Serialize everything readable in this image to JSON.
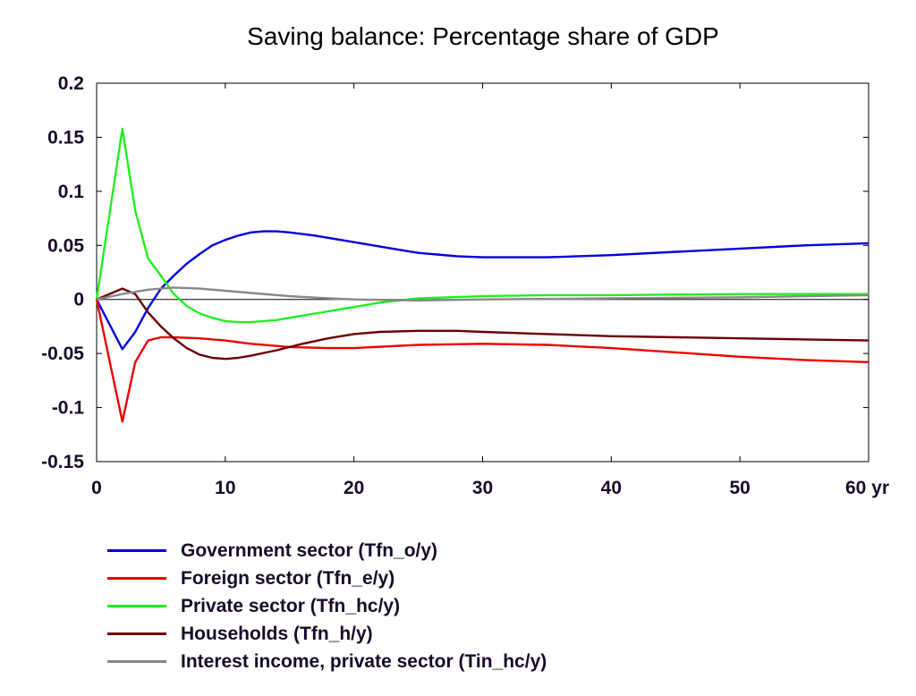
{
  "chart_data": {
    "type": "line",
    "title": "Saving balance: Percentage share of GDP",
    "xlabel": "",
    "ylabel": "",
    "x_unit_label": "yr",
    "xlim": [
      0,
      60
    ],
    "ylim": [
      -0.15,
      0.2
    ],
    "x_ticks": [
      0,
      10,
      20,
      30,
      40,
      50,
      60
    ],
    "x_tick_labels": [
      "0",
      "10",
      "20",
      "30",
      "40",
      "50",
      "60 yr"
    ],
    "y_ticks": [
      -0.15,
      -0.1,
      -0.05,
      0,
      0.05,
      0.1,
      0.15,
      0.2
    ],
    "y_tick_labels": [
      "-0.15",
      "-0.1",
      "-0.05",
      "0",
      "0.05",
      "0.1",
      "0.15",
      "0.2"
    ],
    "grid": false,
    "zero_line": true,
    "legend_position": "bottom-left",
    "series": [
      {
        "name": "Government sector (Tfn_o/y)",
        "color": "#0000dd",
        "points": [
          [
            0,
            0
          ],
          [
            2,
            -0.046
          ],
          [
            3,
            -0.03
          ],
          [
            4,
            -0.008
          ],
          [
            5,
            0.01
          ],
          [
            6,
            0.022
          ],
          [
            7,
            0.033
          ],
          [
            8,
            0.042
          ],
          [
            9,
            0.05
          ],
          [
            10,
            0.055
          ],
          [
            11,
            0.059
          ],
          [
            12,
            0.062
          ],
          [
            13,
            0.063
          ],
          [
            14,
            0.063
          ],
          [
            15,
            0.062
          ],
          [
            17,
            0.059
          ],
          [
            20,
            0.053
          ],
          [
            23,
            0.047
          ],
          [
            25,
            0.043
          ],
          [
            28,
            0.04
          ],
          [
            30,
            0.039
          ],
          [
            35,
            0.039
          ],
          [
            40,
            0.041
          ],
          [
            45,
            0.044
          ],
          [
            50,
            0.047
          ],
          [
            55,
            0.05
          ],
          [
            60,
            0.052
          ]
        ]
      },
      {
        "name": "Foreign sector (Tfn_e/y)",
        "color": "#ee0000",
        "points": [
          [
            0,
            0
          ],
          [
            2,
            -0.113
          ],
          [
            3,
            -0.058
          ],
          [
            4,
            -0.038
          ],
          [
            5,
            -0.035
          ],
          [
            6,
            -0.035
          ],
          [
            8,
            -0.036
          ],
          [
            10,
            -0.038
          ],
          [
            12,
            -0.041
          ],
          [
            15,
            -0.044
          ],
          [
            18,
            -0.045
          ],
          [
            20,
            -0.045
          ],
          [
            25,
            -0.042
          ],
          [
            30,
            -0.041
          ],
          [
            35,
            -0.042
          ],
          [
            40,
            -0.045
          ],
          [
            45,
            -0.049
          ],
          [
            50,
            -0.053
          ],
          [
            55,
            -0.056
          ],
          [
            60,
            -0.058
          ]
        ]
      },
      {
        "name": "Private sector (Tfn_hc/y)",
        "color": "#22ee22",
        "points": [
          [
            0,
            0
          ],
          [
            2,
            0.158
          ],
          [
            3,
            0.082
          ],
          [
            4,
            0.038
          ],
          [
            5,
            0.022
          ],
          [
            6,
            0.005
          ],
          [
            7,
            -0.006
          ],
          [
            8,
            -0.013
          ],
          [
            9,
            -0.017
          ],
          [
            10,
            -0.02
          ],
          [
            11,
            -0.021
          ],
          [
            12,
            -0.021
          ],
          [
            14,
            -0.019
          ],
          [
            16,
            -0.015
          ],
          [
            18,
            -0.011
          ],
          [
            20,
            -0.007
          ],
          [
            22,
            -0.003
          ],
          [
            25,
            0.001
          ],
          [
            30,
            0.003
          ],
          [
            35,
            0.004
          ],
          [
            40,
            0.004
          ],
          [
            50,
            0.005
          ],
          [
            60,
            0.005
          ]
        ]
      },
      {
        "name": "Households (Tfn_h/y)",
        "color": "#6b0000",
        "points": [
          [
            0,
            0
          ],
          [
            2,
            0.01
          ],
          [
            3,
            0.005
          ],
          [
            4,
            -0.012
          ],
          [
            5,
            -0.025
          ],
          [
            6,
            -0.036
          ],
          [
            7,
            -0.045
          ],
          [
            8,
            -0.051
          ],
          [
            9,
            -0.054
          ],
          [
            10,
            -0.055
          ],
          [
            11,
            -0.054
          ],
          [
            12,
            -0.052
          ],
          [
            14,
            -0.047
          ],
          [
            16,
            -0.041
          ],
          [
            18,
            -0.036
          ],
          [
            20,
            -0.032
          ],
          [
            22,
            -0.03
          ],
          [
            25,
            -0.029
          ],
          [
            28,
            -0.029
          ],
          [
            30,
            -0.03
          ],
          [
            35,
            -0.032
          ],
          [
            40,
            -0.034
          ],
          [
            45,
            -0.035
          ],
          [
            50,
            -0.036
          ],
          [
            55,
            -0.037
          ],
          [
            60,
            -0.038
          ]
        ]
      },
      {
        "name": "Interest income, private sector (Tin_hc/y)",
        "color": "#888888",
        "points": [
          [
            0,
            0
          ],
          [
            2,
            0.005
          ],
          [
            4,
            0.009
          ],
          [
            6,
            0.011
          ],
          [
            8,
            0.01
          ],
          [
            10,
            0.008
          ],
          [
            12,
            0.006
          ],
          [
            15,
            0.003
          ],
          [
            18,
            0.001
          ],
          [
            20,
            0
          ],
          [
            25,
            -0.001
          ],
          [
            30,
            0
          ],
          [
            40,
            0.001
          ],
          [
            50,
            0.002
          ],
          [
            60,
            0.004
          ]
        ]
      }
    ]
  }
}
